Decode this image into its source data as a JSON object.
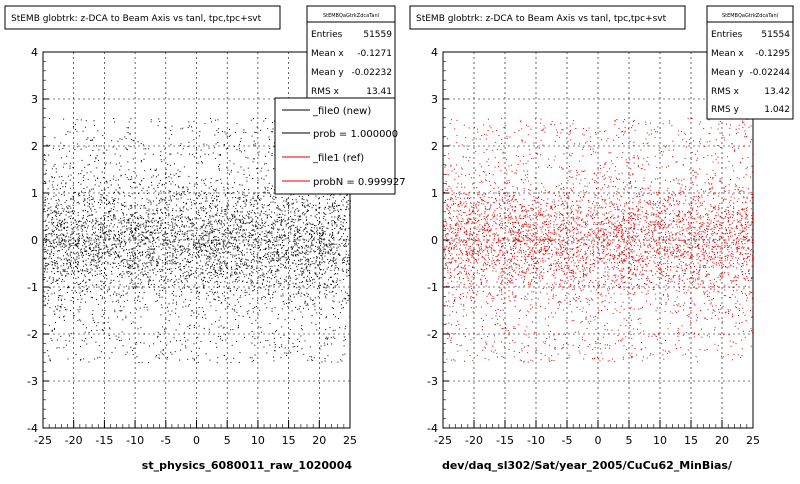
{
  "panels": [
    {
      "title": "StEMB globtrk: z-DCA to Beam Axis vs tanl, tpc,tpc+svt",
      "stats": {
        "name": "StEMBQaGtrkZdcaTanl",
        "rows": [
          {
            "label": "Entries",
            "value": "51559"
          },
          {
            "label": "Mean x",
            "value": "-0.1271"
          },
          {
            "label": "Mean y",
            "value": "-0.02232"
          },
          {
            "label": "RMS x",
            "value": "13.41"
          }
        ]
      },
      "legend": {
        "rows": [
          {
            "text": "_file0 (new)",
            "color": "#000000"
          },
          {
            "text": "prob = 1.000000",
            "color": "#000000"
          },
          {
            "text": "_file1 (ref)",
            "color": "#e00000"
          },
          {
            "text": "probN = 0.999927",
            "color": "#e00000"
          }
        ]
      },
      "xlabel": "st_physics_6080011_raw_1020004"
    },
    {
      "title": "StEMB globtrk: z-DCA to Beam Axis vs tanl, tpc,tpc+svt",
      "stats": {
        "name": "StEMBQaGtrkZdcaTanl",
        "rows": [
          {
            "label": "Entries",
            "value": "51554"
          },
          {
            "label": "Mean x",
            "value": "-0.1295"
          },
          {
            "label": "Mean y",
            "value": "-0.02244"
          },
          {
            "label": "RMS x",
            "value": "13.42"
          },
          {
            "label": "RMS y",
            "value": "1.042"
          }
        ]
      },
      "xlabel": "dev/daq_sl302/Sat/year_2005/CuCu62_MinBias/"
    }
  ],
  "chart_data": [
    {
      "type": "scatter",
      "title": "StEMB globtrk: z-DCA to Beam Axis vs tanl, tpc,tpc+svt",
      "xlabel": "st_physics_6080011_raw_1020004",
      "ylabel": "",
      "xlim": [
        -25,
        25
      ],
      "ylim": [
        -4,
        4
      ],
      "xticks": [
        -25,
        -20,
        -15,
        -10,
        -5,
        0,
        5,
        10,
        15,
        20,
        25
      ],
      "yticks": [
        -4,
        -3,
        -2,
        -1,
        0,
        1,
        2,
        3,
        4
      ],
      "grid": true,
      "color": "#000000",
      "entries": 51559,
      "mean_x": -0.1271,
      "mean_y": -0.02232,
      "rms_x": 13.41,
      "series": [
        {
          "name": "_file0 (new)"
        }
      ]
    },
    {
      "type": "scatter",
      "title": "StEMB globtrk: z-DCA to Beam Axis vs tanl, tpc,tpc+svt",
      "xlabel": "dev/daq_sl302/Sat/year_2005/CuCu62_MinBias/",
      "ylabel": "",
      "xlim": [
        -25,
        25
      ],
      "ylim": [
        -4,
        4
      ],
      "xticks": [
        -25,
        -20,
        -15,
        -10,
        -5,
        0,
        5,
        10,
        15,
        20,
        25
      ],
      "yticks": [
        -4,
        -3,
        -2,
        -1,
        0,
        1,
        2,
        3,
        4
      ],
      "grid": true,
      "color": "#e00000",
      "entries": 51554,
      "mean_x": -0.1295,
      "mean_y": -0.02244,
      "rms_x": 13.42,
      "rms_y": 1.042,
      "series": [
        {
          "name": "_file1 (ref)"
        }
      ]
    }
  ]
}
